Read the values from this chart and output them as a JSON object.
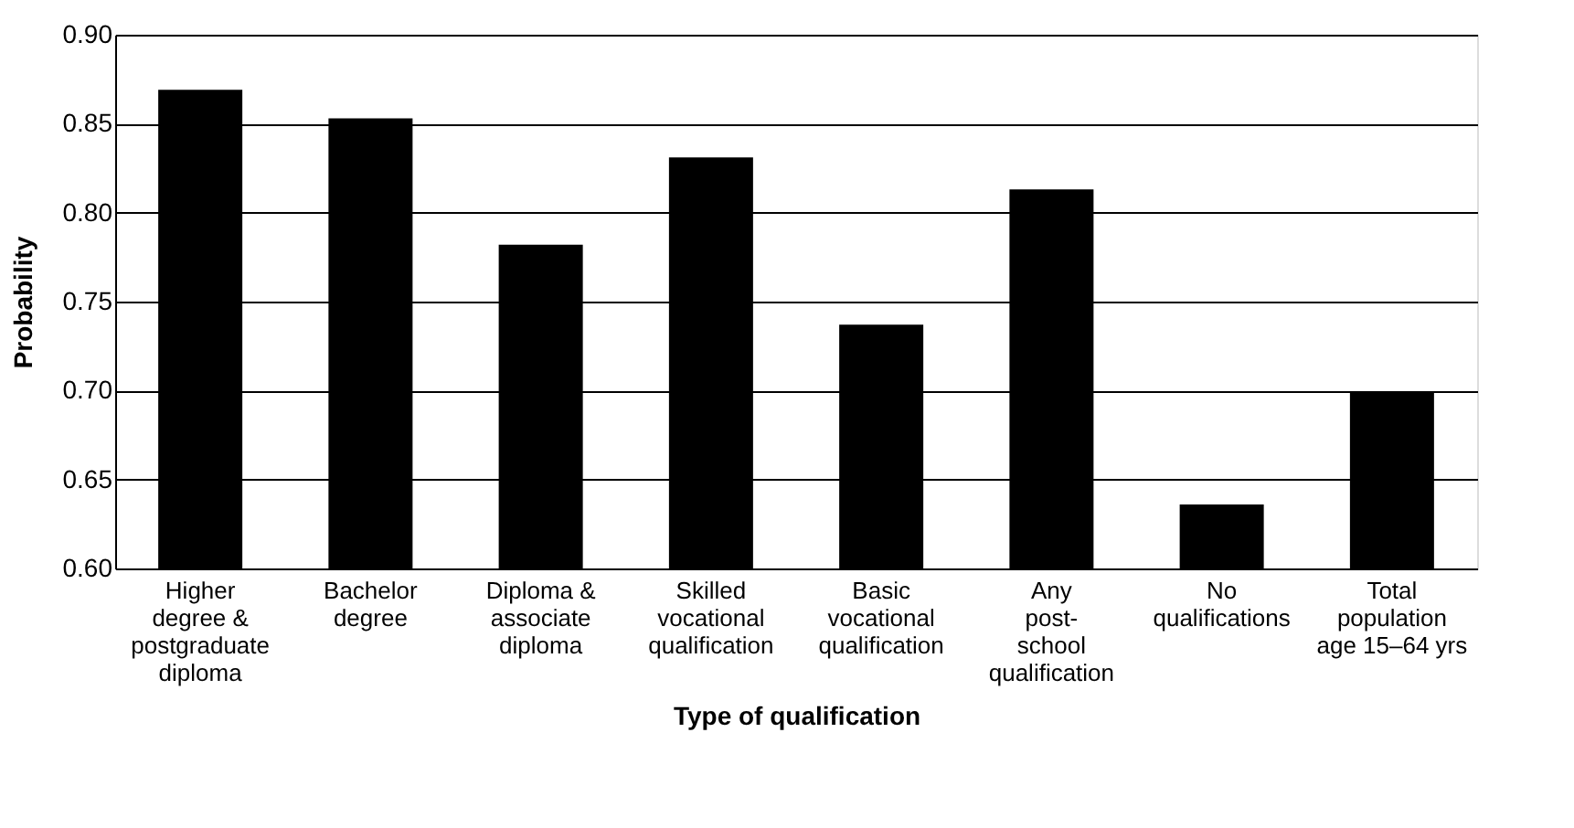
{
  "chart_data": {
    "type": "bar",
    "xlabel": "Type of qualification",
    "ylabel": "Probability",
    "categories": [
      "Higher\ndegree &\npostgraduate\ndiploma",
      "Bachelor\ndegree",
      "Diploma &\nassociate\ndiploma",
      "Skilled\nvocational\nqualification",
      "Basic\nvocational\nqualification",
      "Any\npost-\nschool\nqualification",
      "No\nqualifications",
      "Total\npopulation\nage 15–64 yrs"
    ],
    "values": [
      0.869,
      0.853,
      0.782,
      0.831,
      0.737,
      0.813,
      0.636,
      0.699
    ],
    "color": "#000000",
    "ylim": [
      0.6,
      0.9
    ],
    "yticks": [
      {
        "value": 0.6,
        "label": "0.60"
      },
      {
        "value": 0.65,
        "label": "0.65"
      },
      {
        "value": 0.7,
        "label": "0.70"
      },
      {
        "value": 0.75,
        "label": "0.75"
      },
      {
        "value": 0.8,
        "label": "0.80"
      },
      {
        "value": 0.85,
        "label": "0.85"
      },
      {
        "value": 0.9,
        "label": "0.90"
      }
    ],
    "grid": "y"
  }
}
